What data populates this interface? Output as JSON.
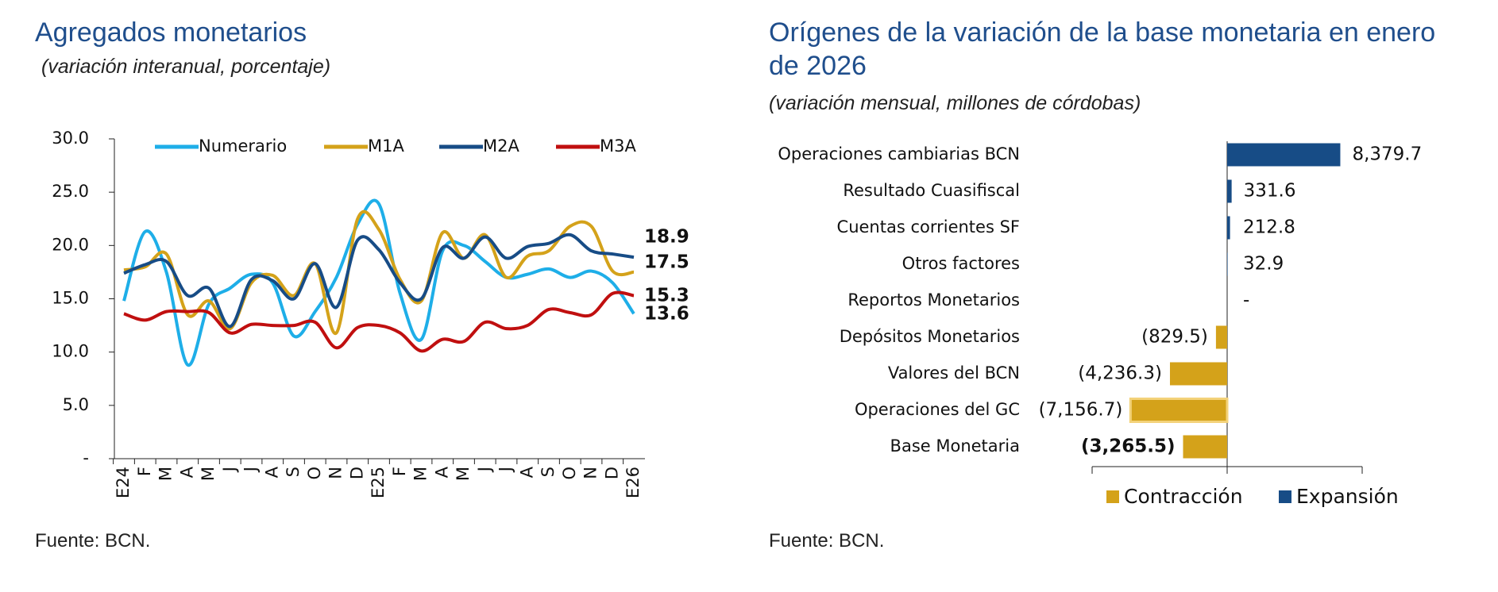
{
  "chart_data": [
    {
      "type": "line",
      "title": "Agregados monetarios",
      "subtitle": "(variación interanual, porcentaje)",
      "source": "Fuente: BCN.",
      "categories": [
        "E24",
        "F",
        "M",
        "A",
        "M",
        "J",
        "J",
        "A",
        "S",
        "O",
        "N",
        "D",
        "E25",
        "F",
        "M",
        "A",
        "M",
        "J",
        "J",
        "A",
        "S",
        "O",
        "N",
        "D",
        "E26"
      ],
      "series": [
        {
          "name": "Numerario",
          "color": "#1eaee8",
          "values": [
            14.8,
            21.3,
            17.5,
            8.8,
            14.5,
            16.0,
            17.3,
            16.5,
            11.5,
            13.8,
            17.0,
            22.0,
            23.9,
            15.5,
            11.2,
            19.5,
            20.0,
            18.5,
            17.0,
            17.3,
            17.8,
            17.0,
            17.6,
            16.5,
            13.6
          ]
        },
        {
          "name": "M1A",
          "color": "#d4a21a",
          "values": [
            17.7,
            18.0,
            19.2,
            13.5,
            14.8,
            12.2,
            16.5,
            17.2,
            15.3,
            18.3,
            11.8,
            22.5,
            21.5,
            16.8,
            14.8,
            21.2,
            18.8,
            21.0,
            17.0,
            19.0,
            19.5,
            21.8,
            21.8,
            17.6,
            17.5
          ]
        },
        {
          "name": "M2A",
          "color": "#174c86",
          "values": [
            17.4,
            18.2,
            18.5,
            15.3,
            16.0,
            12.4,
            16.8,
            16.7,
            15.0,
            18.3,
            14.2,
            20.5,
            19.6,
            16.5,
            15.0,
            19.8,
            18.8,
            20.8,
            18.8,
            19.9,
            20.2,
            21.0,
            19.5,
            19.2,
            18.9
          ]
        },
        {
          "name": "M3A",
          "color": "#c00f0f",
          "values": [
            13.6,
            13.0,
            13.8,
            13.8,
            13.7,
            11.8,
            12.6,
            12.5,
            12.5,
            12.8,
            10.4,
            12.3,
            12.5,
            11.8,
            10.1,
            11.2,
            11.0,
            12.8,
            12.2,
            12.5,
            14.0,
            13.7,
            13.5,
            15.5,
            15.3
          ]
        }
      ],
      "ylim": [
        0,
        30
      ],
      "yticks": [
        {
          "value": 0,
          "label": "-"
        },
        {
          "value": 5,
          "label": "5.0"
        },
        {
          "value": 10,
          "label": "10.0"
        },
        {
          "value": 15,
          "label": "15.0"
        },
        {
          "value": 20,
          "label": "20.0"
        },
        {
          "value": 25,
          "label": "25.0"
        },
        {
          "value": 30,
          "label": "30.0"
        }
      ],
      "legend_position": "top"
    },
    {
      "type": "hbar",
      "title": "Orígenes de la variación de la base monetaria en enero de 2026",
      "subtitle": "(variación mensual, millones de córdobas)",
      "source": "Fuente: BCN.",
      "categories": [
        "Operaciones cambiarias BCN",
        "Resultado Cuasifiscal",
        "Cuentas corrientes SF",
        "Otros factores",
        "Reportos Monetarios",
        "Depósitos Monetarios",
        "Valores del BCN",
        "Operaciones del GC",
        "Base Monetaria"
      ],
      "values": [
        8379.7,
        331.6,
        212.8,
        32.9,
        0,
        -829.5,
        -4236.3,
        -7156.7,
        -3265.5
      ],
      "value_labels": [
        "8,379.7",
        "331.6",
        "212.8",
        "32.9",
        "-",
        "(829.5)",
        "(4,236.3)",
        "(7,156.7)",
        "(3,265.5)"
      ],
      "legend": [
        {
          "name": "Contracción",
          "color": "#d4a21a"
        },
        {
          "name": "Expansión",
          "color": "#174c86"
        }
      ],
      "xlim": [
        -10000,
        10000
      ],
      "xticks": [
        -10000,
        0,
        10000
      ]
    }
  ]
}
